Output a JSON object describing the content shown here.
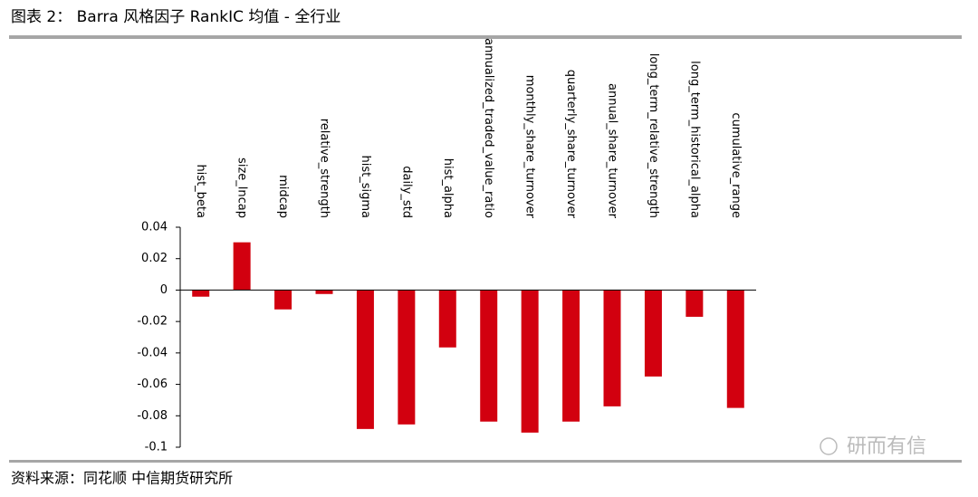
{
  "header": {
    "title": "图表 2：  Barra 风格因子 RankIC 均值  -  全行业"
  },
  "chart_data": {
    "type": "bar",
    "categories": [
      "hist_beta",
      "size_lncap",
      "midcap",
      "relative_strength",
      "hist_sigma",
      "daily_std",
      "hist_alpha",
      "annualized_traded_value_ratio",
      "monthly_share_turnover",
      "quarterly_share_turnover",
      "annual_share_turnover",
      "long_term_relative_strength",
      "long_term_historical_alpha",
      "cumulative_range"
    ],
    "values": [
      -0.0042,
      0.0304,
      -0.0123,
      -0.0025,
      -0.0884,
      -0.0855,
      -0.0365,
      -0.0837,
      -0.0907,
      -0.0837,
      -0.074,
      -0.055,
      -0.017,
      -0.075
    ],
    "color": "#d2000f",
    "ylim": [
      -0.1,
      0.04
    ],
    "yticks": [
      0.04,
      0.02,
      0,
      -0.02,
      -0.04,
      -0.06,
      -0.08,
      -0.1
    ]
  },
  "footer": {
    "source": "资料来源：同花顺    中信期货研究所",
    "watermark": "研而有信"
  }
}
